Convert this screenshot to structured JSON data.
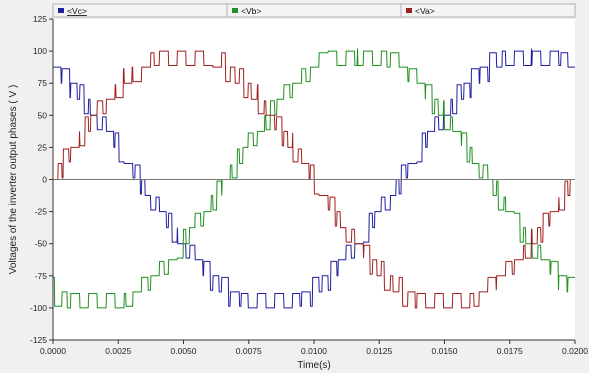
{
  "chart_data": {
    "type": "line",
    "xlabel": "Time(s)",
    "ylabel": "Voltages of the inverter output phases ( V )",
    "xlim": [
      0,
      0.02
    ],
    "ylim": [
      -125,
      125
    ],
    "x_ticks": [
      "0.0000",
      "0.0025",
      "0.0050",
      "0.0075",
      "0.0100",
      "0.0125",
      "0.0150",
      "0.0175",
      "0.0200"
    ],
    "y_ticks": [
      "125",
      "100",
      "75",
      "50",
      "25",
      "0",
      "-25",
      "-50",
      "-75",
      "-100",
      "-125"
    ],
    "legend": [
      {
        "label": "<Vc>",
        "color": "#1f1f9f"
      },
      {
        "label": "<Vb>",
        "color": "#1f8f1f"
      },
      {
        "label": "<Va>",
        "color": "#9f1f1f"
      }
    ],
    "series": [
      {
        "name": "<Vc>",
        "color": "#1f1f9f",
        "phase_deg": 120,
        "amplitude": 100
      },
      {
        "name": "<Vb>",
        "color": "#1f8f1f",
        "phase_deg": -120,
        "amplitude": 100
      },
      {
        "name": "<Va>",
        "color": "#9f1f1f",
        "phase_deg": 0,
        "amplitude": 100
      }
    ],
    "frequency_hz": 50,
    "grid": false,
    "legend_placement": "top"
  }
}
